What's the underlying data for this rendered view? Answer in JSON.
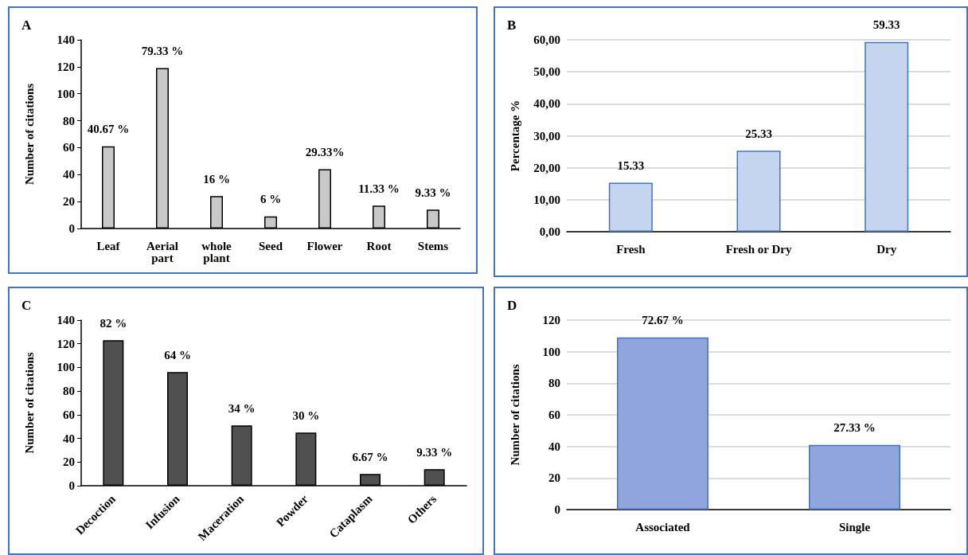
{
  "chart_data": [
    {
      "type": "bar",
      "title": "A",
      "ylabel": "Number of citations",
      "categories": [
        "Leaf",
        "Aerial part",
        "whole plant",
        "Seed",
        "Flower",
        "Root",
        "Stems"
      ],
      "values": [
        61,
        119,
        24,
        9,
        44,
        17,
        14
      ],
      "color": "#c8c8c8",
      "ylim": [
        0,
        140
      ],
      "yticks": [
        0,
        20,
        40,
        60,
        80,
        100,
        120,
        140
      ],
      "grid": false,
      "annotations": [
        {
          "text": "40.67 %",
          "x": "Leaf",
          "y": 61
        },
        {
          "text": "79.33 %",
          "x": "Aerial part",
          "y": 119
        },
        {
          "text": "16 %",
          "x": "whole plant",
          "y": 24
        },
        {
          "text": "6 %",
          "x": "Seed",
          "y": 9
        },
        {
          "text": "29.33%",
          "x": "Flower",
          "y": 44
        },
        {
          "text": "11.33 %",
          "x": "Root",
          "y": 17
        },
        {
          "text": "9.33 %",
          "x": "Stems",
          "y": 14
        }
      ]
    },
    {
      "type": "bar",
      "title": "B",
      "ylabel": "Percentage %",
      "categories": [
        "Fresh",
        "Fresh or Dry",
        "Dry"
      ],
      "values": [
        15.33,
        25.33,
        59.33
      ],
      "data_labels": true,
      "color": "#c5d5f0",
      "ylim": [
        0,
        60
      ],
      "yticks": [
        {
          "value": 0,
          "label": "0,00"
        },
        {
          "value": 10,
          "label": "10,00"
        },
        {
          "value": 20,
          "label": "20,00"
        },
        {
          "value": 30,
          "label": "30,00"
        },
        {
          "value": 40,
          "label": "40,00"
        },
        {
          "value": 50,
          "label": "50,00"
        },
        {
          "value": 60,
          "label": "60,00"
        }
      ],
      "grid": "y"
    },
    {
      "type": "bar",
      "title": "C",
      "ylabel": "Number of citations",
      "categories": [
        "Decoction",
        "Infusion",
        "Maceration",
        "Powder",
        "Cataplasm",
        "Others"
      ],
      "values": [
        123,
        96,
        51,
        45,
        10,
        14
      ],
      "color": "#505050",
      "ylim": [
        0,
        140
      ],
      "yticks": [
        0,
        20,
        40,
        60,
        80,
        100,
        120,
        140
      ],
      "grid": false,
      "annotations": [
        {
          "text": "82 %",
          "x": "Decoction",
          "y": 123
        },
        {
          "text": "64 %",
          "x": "Infusion",
          "y": 96
        },
        {
          "text": "34 %",
          "x": "Maceration",
          "y": 51
        },
        {
          "text": "30 %",
          "x": "Powder",
          "y": 45
        },
        {
          "text": "6.67 %",
          "x": "Cataplasm",
          "y": 10
        },
        {
          "text": "9.33 %",
          "x": "Others",
          "y": 14
        }
      ]
    },
    {
      "type": "bar",
      "title": "D",
      "ylabel": "Number of citations",
      "categories": [
        "Associated",
        "Single"
      ],
      "values": [
        109,
        41
      ],
      "color": "#8fa5dc",
      "ylim": [
        0,
        120
      ],
      "yticks": [
        0,
        20,
        40,
        60,
        80,
        100,
        120
      ],
      "grid": "y",
      "annotations": [
        {
          "text": "72.67 %",
          "x": "Associated",
          "y": 109
        },
        {
          "text": "27.33 %",
          "x": "Single",
          "y": 41
        }
      ]
    }
  ]
}
